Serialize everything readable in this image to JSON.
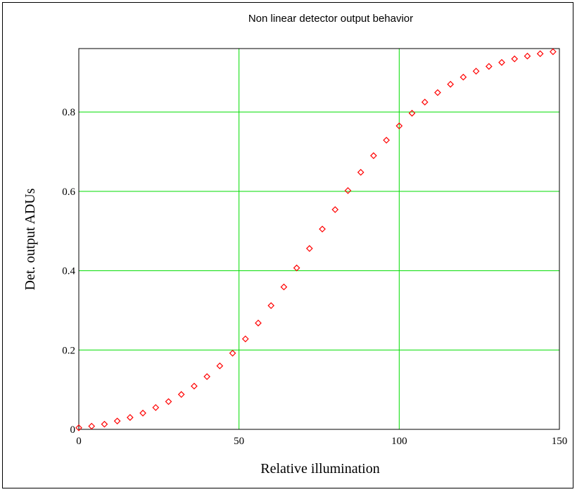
{
  "chart_data": {
    "type": "scatter",
    "title": "Non linear detector output behavior",
    "xlabel": "Relative illumination",
    "ylabel": "Det. output ADUs",
    "xlim": [
      0,
      150
    ],
    "ylim": [
      0,
      0.96
    ],
    "x_ticks": [
      "0",
      "50",
      "100",
      "150"
    ],
    "y_ticks": [
      "0",
      "0.2",
      "0.4",
      "0.6",
      "0.8"
    ],
    "grid": true,
    "grid_color": "#00dd00",
    "marker_color": "#ff0000",
    "marker": "diamond",
    "x": [
      0,
      4,
      8,
      12,
      16,
      20,
      24,
      28,
      32,
      36,
      40,
      44,
      48,
      52,
      56,
      60,
      64,
      68,
      72,
      76,
      80,
      84,
      88,
      92,
      96,
      100,
      104,
      108,
      112,
      116,
      120,
      124,
      128,
      132,
      136,
      140,
      144,
      148
    ],
    "y": [
      0.004,
      0.008,
      0.013,
      0.021,
      0.03,
      0.041,
      0.055,
      0.07,
      0.088,
      0.109,
      0.133,
      0.16,
      0.192,
      0.228,
      0.268,
      0.312,
      0.359,
      0.407,
      0.456,
      0.505,
      0.554,
      0.602,
      0.648,
      0.69,
      0.729,
      0.765,
      0.797,
      0.825,
      0.849,
      0.87,
      0.888,
      0.903,
      0.915,
      0.925,
      0.934,
      0.941,
      0.947,
      0.952
    ]
  }
}
